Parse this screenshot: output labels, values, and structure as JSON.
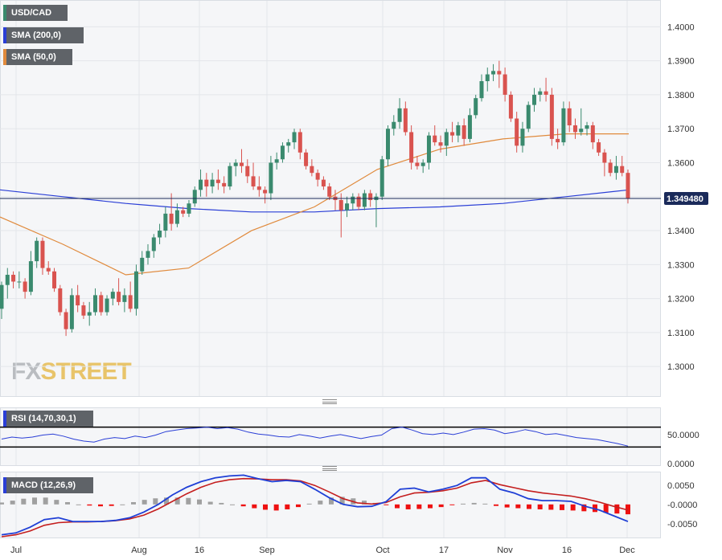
{
  "legends": {
    "symbol": "USD/CAD",
    "sma200": "SMA (200,0)",
    "sma50": "SMA (50,0)",
    "rsi": "RSI (14,70,30,1)",
    "macd": "MACD (12,26,9)"
  },
  "price_label": "1.349480",
  "logo": {
    "fx": "FX",
    "street": "STREET"
  },
  "colors": {
    "up": "#3a8a6e",
    "down": "#d9534f",
    "sma200": "#2a3ed6",
    "sma50": "#e08a3c",
    "rsi": "#2a3ed6",
    "macd": "#1f3fd6",
    "signal": "#c41e1e",
    "hist_pos": "#a0a0a0",
    "hist_neg": "#ee1111"
  },
  "chart_data": [
    {
      "type": "candlestick",
      "title": "USD/CAD",
      "x_tick_labels": [
        "Jul",
        "Aug",
        "16",
        "Sep",
        "Oct",
        "17",
        "Nov",
        "16",
        "Dec"
      ],
      "y_tick_labels": [
        "1.4000",
        "1.3900",
        "1.3800",
        "1.3700",
        "1.3600",
        "1.3500",
        "1.3400",
        "1.3300",
        "1.3200",
        "1.3100",
        "1.3000"
      ],
      "ylim": [
        1.292,
        1.406
      ],
      "last_price": 1.34948,
      "candles": [
        [
          1.317,
          1.325,
          1.314,
          1.324
        ],
        [
          1.324,
          1.329,
          1.32,
          1.327
        ],
        [
          1.327,
          1.328,
          1.323,
          1.325
        ],
        [
          1.325,
          1.328,
          1.323,
          1.325
        ],
        [
          1.325,
          1.326,
          1.32,
          1.322
        ],
        [
          1.322,
          1.334,
          1.321,
          1.331
        ],
        [
          1.331,
          1.338,
          1.329,
          1.337
        ],
        [
          1.337,
          1.338,
          1.327,
          1.329
        ],
        [
          1.329,
          1.331,
          1.327,
          1.328
        ],
        [
          1.328,
          1.329,
          1.322,
          1.323
        ],
        [
          1.323,
          1.324,
          1.315,
          1.316
        ],
        [
          1.316,
          1.317,
          1.309,
          1.311
        ],
        [
          1.311,
          1.323,
          1.31,
          1.321
        ],
        [
          1.321,
          1.324,
          1.316,
          1.318
        ],
        [
          1.318,
          1.319,
          1.314,
          1.315
        ],
        [
          1.315,
          1.319,
          1.312,
          1.316
        ],
        [
          1.316,
          1.323,
          1.315,
          1.321
        ],
        [
          1.321,
          1.322,
          1.315,
          1.316
        ],
        [
          1.316,
          1.321,
          1.315,
          1.32
        ],
        [
          1.32,
          1.323,
          1.318,
          1.322
        ],
        [
          1.322,
          1.326,
          1.318,
          1.319
        ],
        [
          1.319,
          1.323,
          1.316,
          1.321
        ],
        [
          1.321,
          1.325,
          1.316,
          1.317
        ],
        [
          1.317,
          1.33,
          1.315,
          1.328
        ],
        [
          1.328,
          1.334,
          1.327,
          1.332
        ],
        [
          1.332,
          1.336,
          1.33,
          1.334
        ],
        [
          1.334,
          1.339,
          1.332,
          1.338
        ],
        [
          1.338,
          1.342,
          1.336,
          1.34
        ],
        [
          1.34,
          1.347,
          1.338,
          1.345
        ],
        [
          1.345,
          1.351,
          1.34,
          1.342
        ],
        [
          1.342,
          1.348,
          1.341,
          1.346
        ],
        [
          1.346,
          1.347,
          1.344,
          1.345
        ],
        [
          1.345,
          1.349,
          1.344,
          1.348
        ],
        [
          1.348,
          1.353,
          1.347,
          1.352
        ],
        [
          1.352,
          1.358,
          1.35,
          1.355
        ],
        [
          1.355,
          1.357,
          1.35,
          1.353
        ],
        [
          1.353,
          1.357,
          1.351,
          1.355
        ],
        [
          1.355,
          1.358,
          1.352,
          1.354
        ],
        [
          1.354,
          1.356,
          1.351,
          1.353
        ],
        [
          1.353,
          1.36,
          1.352,
          1.359
        ],
        [
          1.359,
          1.361,
          1.356,
          1.36
        ],
        [
          1.36,
          1.364,
          1.357,
          1.359
        ],
        [
          1.359,
          1.361,
          1.354,
          1.356
        ],
        [
          1.356,
          1.36,
          1.352,
          1.353
        ],
        [
          1.353,
          1.356,
          1.35,
          1.352
        ],
        [
          1.352,
          1.353,
          1.348,
          1.351
        ],
        [
          1.351,
          1.362,
          1.349,
          1.36
        ],
        [
          1.36,
          1.363,
          1.358,
          1.361
        ],
        [
          1.361,
          1.366,
          1.36,
          1.365
        ],
        [
          1.365,
          1.367,
          1.363,
          1.366
        ],
        [
          1.366,
          1.37,
          1.364,
          1.369
        ],
        [
          1.369,
          1.37,
          1.361,
          1.363
        ],
        [
          1.363,
          1.364,
          1.358,
          1.359
        ],
        [
          1.359,
          1.361,
          1.356,
          1.357
        ],
        [
          1.357,
          1.358,
          1.353,
          1.355
        ],
        [
          1.355,
          1.356,
          1.352,
          1.353
        ],
        [
          1.353,
          1.354,
          1.349,
          1.35
        ],
        [
          1.35,
          1.352,
          1.346,
          1.349
        ],
        [
          1.349,
          1.351,
          1.338,
          1.346
        ],
        [
          1.346,
          1.35,
          1.344,
          1.348
        ],
        [
          1.348,
          1.351,
          1.346,
          1.35
        ],
        [
          1.35,
          1.351,
          1.346,
          1.347
        ],
        [
          1.347,
          1.352,
          1.346,
          1.351
        ],
        [
          1.351,
          1.352,
          1.347,
          1.349
        ],
        [
          1.349,
          1.351,
          1.341,
          1.35
        ],
        [
          1.35,
          1.362,
          1.349,
          1.361
        ],
        [
          1.361,
          1.371,
          1.359,
          1.37
        ],
        [
          1.37,
          1.374,
          1.368,
          1.372
        ],
        [
          1.372,
          1.379,
          1.37,
          1.376
        ],
        [
          1.376,
          1.378,
          1.368,
          1.369
        ],
        [
          1.369,
          1.371,
          1.358,
          1.36
        ],
        [
          1.36,
          1.362,
          1.358,
          1.359
        ],
        [
          1.359,
          1.361,
          1.357,
          1.36
        ],
        [
          1.36,
          1.369,
          1.358,
          1.368
        ],
        [
          1.368,
          1.371,
          1.365,
          1.366
        ],
        [
          1.366,
          1.368,
          1.363,
          1.365
        ],
        [
          1.365,
          1.37,
          1.362,
          1.369
        ],
        [
          1.369,
          1.372,
          1.366,
          1.368
        ],
        [
          1.368,
          1.372,
          1.366,
          1.371
        ],
        [
          1.371,
          1.373,
          1.365,
          1.367
        ],
        [
          1.367,
          1.376,
          1.366,
          1.374
        ],
        [
          1.374,
          1.38,
          1.373,
          1.379
        ],
        [
          1.379,
          1.386,
          1.378,
          1.384
        ],
        [
          1.384,
          1.388,
          1.381,
          1.386
        ],
        [
          1.386,
          1.389,
          1.384,
          1.387
        ],
        [
          1.387,
          1.39,
          1.382,
          1.386
        ],
        [
          1.386,
          1.388,
          1.378,
          1.38
        ],
        [
          1.38,
          1.381,
          1.372,
          1.373
        ],
        [
          1.373,
          1.375,
          1.363,
          1.365
        ],
        [
          1.365,
          1.372,
          1.363,
          1.37
        ],
        [
          1.37,
          1.378,
          1.369,
          1.377
        ],
        [
          1.377,
          1.382,
          1.375,
          1.38
        ],
        [
          1.38,
          1.382,
          1.378,
          1.381
        ],
        [
          1.381,
          1.385,
          1.378,
          1.38
        ],
        [
          1.38,
          1.382,
          1.365,
          1.367
        ],
        [
          1.367,
          1.37,
          1.364,
          1.366
        ],
        [
          1.366,
          1.378,
          1.365,
          1.376
        ],
        [
          1.376,
          1.378,
          1.369,
          1.371
        ],
        [
          1.371,
          1.373,
          1.367,
          1.369
        ],
        [
          1.369,
          1.376,
          1.368,
          1.37
        ],
        [
          1.37,
          1.372,
          1.368,
          1.371
        ],
        [
          1.371,
          1.372,
          1.364,
          1.366
        ],
        [
          1.366,
          1.367,
          1.362,
          1.363
        ],
        [
          1.363,
          1.364,
          1.356,
          1.36
        ],
        [
          1.36,
          1.361,
          1.356,
          1.357
        ],
        [
          1.357,
          1.362,
          1.355,
          1.359
        ],
        [
          1.359,
          1.362,
          1.356,
          1.357
        ],
        [
          1.357,
          1.358,
          1.348,
          1.3495
        ]
      ],
      "sma200": [
        1.352,
        1.35,
        1.348,
        1.3465,
        1.3455,
        1.3455,
        1.3465,
        1.347,
        1.348,
        1.35,
        1.352
      ],
      "sma50": [
        1.344,
        1.336,
        1.327,
        1.329,
        1.34,
        1.347,
        1.358,
        1.364,
        1.367,
        1.3685,
        1.3685
      ]
    },
    {
      "type": "line",
      "title": "RSI (14,70,30,1)",
      "y_tick_labels": [
        "50.0000",
        "0.0000"
      ],
      "ylim": [
        0,
        100
      ],
      "levels": [
        70,
        30
      ],
      "values": [
        46,
        50,
        48,
        50,
        54,
        56,
        52,
        46,
        42,
        40,
        46,
        49,
        47,
        52,
        49,
        54,
        61,
        64,
        67,
        68,
        70,
        67,
        69,
        66,
        60,
        56,
        54,
        51,
        50,
        55,
        52,
        48,
        52,
        55,
        51,
        47,
        51,
        54,
        67,
        70,
        64,
        57,
        55,
        58,
        55,
        60,
        66,
        67,
        64,
        57,
        60,
        65,
        61,
        55,
        57,
        53,
        49,
        47,
        45,
        41,
        37,
        32
      ]
    },
    {
      "type": "bar+line",
      "title": "MACD (12,26,9)",
      "y_tick_labels": [
        "0.0050",
        "-0.0000",
        "-0.0050"
      ],
      "ylim": [
        -0.0085,
        0.008
      ],
      "macd": [
        -0.008,
        -0.0075,
        -0.006,
        -0.004,
        -0.0035,
        -0.0045,
        -0.0045,
        -0.0045,
        -0.0042,
        -0.0035,
        -0.002,
        0.0,
        0.0025,
        0.0045,
        0.006,
        0.007,
        0.0075,
        0.0077,
        0.0068,
        0.006,
        0.0063,
        0.006,
        0.004,
        0.0018,
        0.0,
        -0.0006,
        -0.0005,
        0.0007,
        0.004,
        0.0043,
        0.0033,
        0.004,
        0.005,
        0.007,
        0.007,
        0.004,
        0.003,
        0.0015,
        0.001,
        0.001,
        0.0008,
        -0.0005,
        -0.0015,
        -0.003,
        -0.0045
      ],
      "signal": [
        -0.0085,
        -0.008,
        -0.007,
        -0.0055,
        -0.0048,
        -0.0046,
        -0.0046,
        -0.0045,
        -0.0043,
        -0.0038,
        -0.0028,
        -0.0012,
        0.0008,
        0.0028,
        0.0045,
        0.0058,
        0.0065,
        0.0068,
        0.0067,
        0.0065,
        0.0065,
        0.0062,
        0.005,
        0.0033,
        0.0015,
        0.0004,
        0.0001,
        0.0005,
        0.002,
        0.003,
        0.0032,
        0.0036,
        0.0043,
        0.0057,
        0.0063,
        0.0052,
        0.0044,
        0.0036,
        0.003,
        0.0026,
        0.0022,
        0.0015,
        0.0006,
        -0.0005,
        -0.0015
      ],
      "histogram": [
        0.0005,
        0.001,
        0.0015,
        0.0018,
        0.0018,
        0.0012,
        0.0006,
        0.0,
        -0.0003,
        -0.0005,
        -0.0004,
        0.0,
        0.0006,
        0.0012,
        0.0016,
        0.0018,
        0.0018,
        0.0017,
        0.0013,
        0.0007,
        0.0004,
        0.0,
        -0.0005,
        -0.001,
        -0.0014,
        -0.0016,
        -0.0013,
        -0.0007,
        0.0002,
        0.001,
        0.0018,
        0.002,
        0.0016,
        0.001,
        0.0004,
        -0.0002,
        -0.001,
        -0.0013,
        -0.0012,
        -0.001,
        -0.0007,
        -0.0002,
        0.0002,
        0.0004,
        0.0002,
        -0.0004,
        -0.0008,
        -0.001,
        -0.0012,
        -0.0013,
        -0.0014,
        -0.0015,
        -0.0016,
        -0.0018,
        -0.002,
        -0.0022,
        -0.0024,
        -0.0026
      ]
    }
  ]
}
